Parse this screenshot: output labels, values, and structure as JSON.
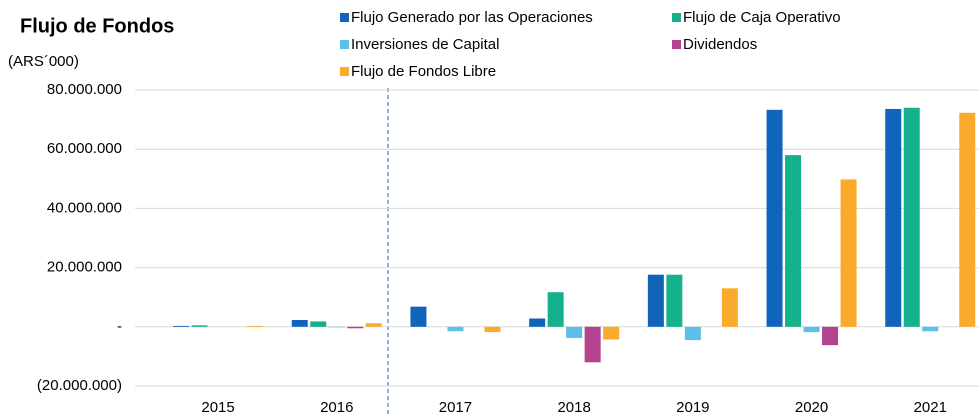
{
  "chart_data": {
    "type": "bar",
    "title": "Flujo de Fondos",
    "subtitle": "(ARS´000)",
    "categories": [
      "2015",
      "2016",
      "2017",
      "2018",
      "2019",
      "2020",
      "2021"
    ],
    "series": [
      {
        "name": "Flujo Generado por las Operaciones",
        "color": "#1064b9",
        "values": [
          300000,
          2300000,
          6800000,
          2800000,
          17600000,
          73300000,
          73600000
        ]
      },
      {
        "name": "Flujo de Caja Operativo",
        "color": "#15b18c",
        "values": [
          500000,
          1800000,
          0,
          11700000,
          17600000,
          58000000,
          74000000
        ]
      },
      {
        "name": "Inversiones de Capital",
        "color": "#5cc0ea",
        "values": [
          0,
          -200000,
          -1500000,
          -3800000,
          -4500000,
          -1800000,
          -1500000
        ]
      },
      {
        "name": "Dividendos",
        "color": "#b3428f",
        "values": [
          0,
          -500000,
          0,
          -12000000,
          0,
          -6200000,
          0
        ]
      },
      {
        "name": "Flujo de Fondos Libre",
        "color": "#fbab2c",
        "values": [
          300000,
          1200000,
          -1800000,
          -4300000,
          13000000,
          49800000,
          72300000
        ]
      }
    ],
    "ylim": [
      -20000000,
      80000000
    ],
    "yticks": [
      {
        "value": -20000000,
        "label": "(20.000.000)"
      },
      {
        "value": 0,
        "label": "-"
      },
      {
        "value": 20000000,
        "label": "20.000.000"
      },
      {
        "value": 40000000,
        "label": "40.000.000"
      },
      {
        "value": 60000000,
        "label": "60.000.000"
      },
      {
        "value": 80000000,
        "label": "80.000.000"
      }
    ],
    "grid": true,
    "legend": "top"
  }
}
